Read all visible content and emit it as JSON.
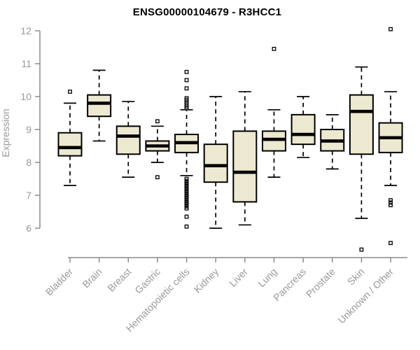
{
  "header": {
    "title": "ENSG00000104679 - R3HCC1"
  },
  "chart_data": {
    "type": "box",
    "title": "ENSG00000104679 - R3HCC1",
    "xlabel": "",
    "ylabel": "Expression",
    "ylim": [
      6,
      12
    ],
    "yticks": [
      6,
      7,
      8,
      9,
      10,
      11,
      12
    ],
    "grid": false,
    "legend": "none",
    "categories": [
      "Bladder",
      "Brain",
      "Breast",
      "Gastric",
      "Hematopoietic cells",
      "Kidney",
      "Liver",
      "Lung",
      "Pancreas",
      "Prostate",
      "Skin",
      "Unknown / Other"
    ],
    "boxes": [
      {
        "category": "Bladder",
        "whisker_low": 7.3,
        "q1": 8.2,
        "median": 8.45,
        "q3": 8.9,
        "whisker_high": 9.8,
        "outliers": [
          10.15
        ]
      },
      {
        "category": "Brain",
        "whisker_low": 8.65,
        "q1": 9.4,
        "median": 9.8,
        "q3": 10.05,
        "whisker_high": 10.8,
        "outliers": []
      },
      {
        "category": "Breast",
        "whisker_low": 7.55,
        "q1": 8.25,
        "median": 8.8,
        "q3": 9.1,
        "whisker_high": 9.85,
        "outliers": []
      },
      {
        "category": "Gastric",
        "whisker_low": 8.0,
        "q1": 8.35,
        "median": 8.5,
        "q3": 8.65,
        "whisker_high": 9.1,
        "outliers": [
          9.25,
          7.55
        ]
      },
      {
        "category": "Hematopoietic cells",
        "whisker_low": 7.6,
        "q1": 8.3,
        "median": 8.6,
        "q3": 8.85,
        "whisker_high": 9.6,
        "outliers": [
          10.75,
          10.5,
          10.25,
          9.95,
          9.9,
          9.85,
          9.8,
          9.75,
          9.7,
          9.65,
          7.5,
          7.44,
          7.38,
          7.32,
          7.26,
          7.2,
          7.14,
          7.08,
          7.02,
          6.96,
          6.9,
          6.84,
          6.78,
          6.72,
          6.66,
          6.6,
          6.35,
          6.05
        ]
      },
      {
        "category": "Kidney",
        "whisker_low": 6.0,
        "q1": 7.4,
        "median": 7.9,
        "q3": 8.55,
        "whisker_high": 10.0,
        "outliers": []
      },
      {
        "category": "Liver",
        "whisker_low": 6.1,
        "q1": 6.8,
        "median": 7.7,
        "q3": 8.95,
        "whisker_high": 10.15,
        "outliers": []
      },
      {
        "category": "Lung",
        "whisker_low": 7.55,
        "q1": 8.35,
        "median": 8.7,
        "q3": 8.95,
        "whisker_high": 9.6,
        "outliers": [
          11.45
        ]
      },
      {
        "category": "Pancreas",
        "whisker_low": 8.15,
        "q1": 8.55,
        "median": 8.85,
        "q3": 9.45,
        "whisker_high": 10.0,
        "outliers": []
      },
      {
        "category": "Prostate",
        "whisker_low": 7.8,
        "q1": 8.35,
        "median": 8.65,
        "q3": 9.0,
        "whisker_high": 9.45,
        "outliers": []
      },
      {
        "category": "Skin",
        "whisker_low": 6.3,
        "q1": 8.25,
        "median": 9.55,
        "q3": 10.05,
        "whisker_high": 10.9,
        "outliers": [
          5.35
        ]
      },
      {
        "category": "Unknown / Other",
        "whisker_low": 7.3,
        "q1": 8.3,
        "median": 8.75,
        "q3": 9.2,
        "whisker_high": 10.15,
        "outliers": [
          12.05,
          6.85,
          6.78,
          6.7,
          5.55
        ]
      }
    ],
    "colors": {
      "box_fill": "#EDE8D0",
      "box_border": "#000000",
      "median": "#000000",
      "whisker": "#000000",
      "outlier": "#000000",
      "axis_line": "#8C8C8C",
      "axis_text": "#999999",
      "title_text": "#000000",
      "background": "#FFFFFF"
    }
  }
}
